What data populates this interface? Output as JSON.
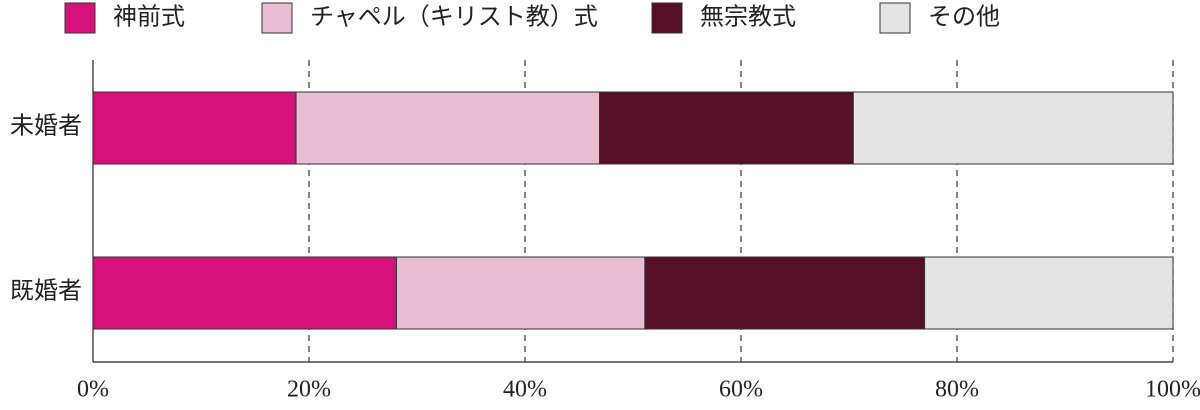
{
  "chart_data": {
    "type": "stacked-bar-horizontal",
    "categories": [
      "未婚者",
      "既婚者"
    ],
    "series": [
      {
        "name": "神前式",
        "color": "#d4127a",
        "values": [
          18.8,
          28.1
        ]
      },
      {
        "name": "チャペル（キリスト教）式",
        "color": "#e9bdd1",
        "values": [
          28.1,
          23.0
        ]
      },
      {
        "name": "無宗教式",
        "color": "#560f27",
        "values": [
          23.5,
          25.9
        ]
      },
      {
        "name": "その他",
        "color": "#e4e4e4",
        "values": [
          29.6,
          23.0
        ]
      }
    ],
    "xlim": [
      0,
      100
    ],
    "xticks": [
      {
        "value": 0,
        "label": "0%"
      },
      {
        "value": 20,
        "label": "20%"
      },
      {
        "value": 40,
        "label": "40%"
      },
      {
        "value": 60,
        "label": "60%"
      },
      {
        "value": 80,
        "label": "80%"
      },
      {
        "value": 100,
        "label": "100%"
      }
    ],
    "grid": true,
    "legend": "top"
  }
}
